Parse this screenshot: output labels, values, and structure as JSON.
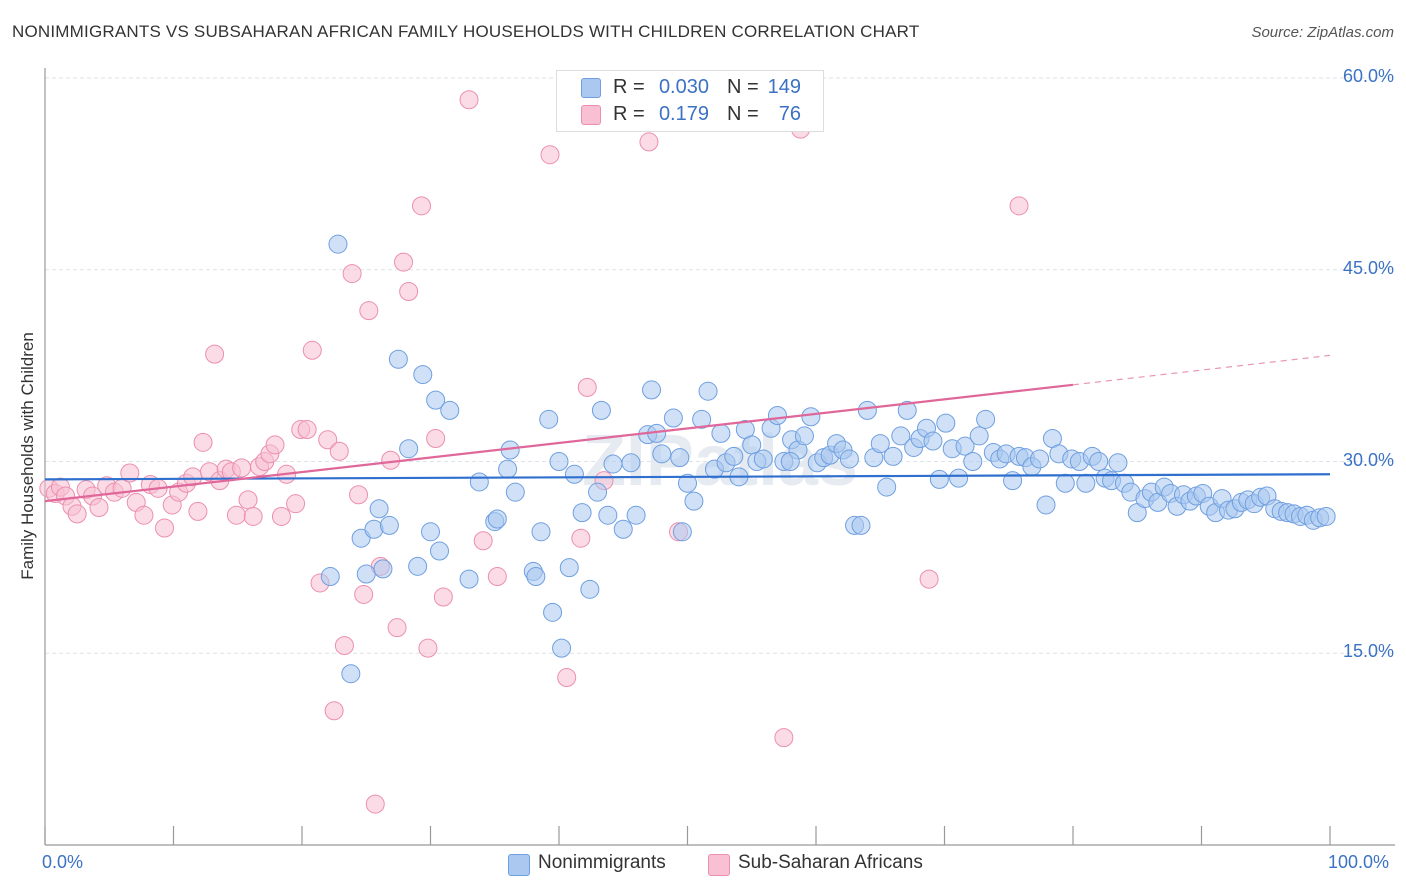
{
  "title": "NONIMMIGRANTS VS SUBSAHARAN AFRICAN FAMILY HOUSEHOLDS WITH CHILDREN CORRELATION CHART",
  "source": "Source: ZipAtlas.com",
  "watermark": "ZIPatlas",
  "colors": {
    "blue_fill": "#aac8f0",
    "blue_stroke": "#6f9fe0",
    "blue_line": "#2f6fce",
    "pink_fill": "#f8c0d2",
    "pink_stroke": "#ec8fae",
    "pink_line": "#e0679a",
    "tick_text": "#3b72c4",
    "grid": "#dde3ea"
  },
  "stats": [
    {
      "r_label": "R =",
      "r_value": "0.030",
      "n_label": "N =",
      "n_value": "149",
      "color": "blue"
    },
    {
      "r_label": "R =",
      "r_value": "0.179",
      "n_label": "N =",
      "n_value": "76",
      "color": "pink"
    }
  ],
  "legend": [
    {
      "label": "Nonimmigrants",
      "color": "blue"
    },
    {
      "label": "Sub-Saharan Africans",
      "color": "pink"
    }
  ],
  "chart_data": {
    "type": "scatter",
    "title": "NONIMMIGRANTS VS SUBSAHARAN AFRICAN FAMILY HOUSEHOLDS WITH CHILDREN CORRELATION CHART",
    "xlabel": "",
    "ylabel": "Family Households with Children",
    "xlim": [
      0,
      100
    ],
    "ylim": [
      0,
      60
    ],
    "x_tick_labels": [
      "0.0%",
      "100.0%"
    ],
    "y_ticks": [
      15,
      30,
      45,
      60
    ],
    "y_tick_labels": [
      "15.0%",
      "30.0%",
      "45.0%",
      "60.0%"
    ],
    "grid": true,
    "legend_position": "bottom",
    "series": [
      {
        "name": "Nonimmigrants",
        "color": "#aac8f0",
        "trend": {
          "x": [
            0,
            100
          ],
          "y": [
            28.6,
            29.0
          ]
        },
        "points": [
          [
            22.8,
            47.0
          ],
          [
            27.5,
            38.0
          ],
          [
            29.4,
            36.8
          ],
          [
            30.4,
            34.8
          ],
          [
            31.5,
            34.0
          ],
          [
            28.3,
            31.0
          ],
          [
            22.2,
            21.0
          ],
          [
            23.8,
            13.4
          ],
          [
            24.6,
            24.0
          ],
          [
            25.0,
            21.2
          ],
          [
            25.6,
            24.7
          ],
          [
            26.0,
            26.3
          ],
          [
            26.3,
            21.6
          ],
          [
            26.8,
            25.0
          ],
          [
            29.0,
            21.8
          ],
          [
            30.7,
            23.0
          ],
          [
            33.0,
            20.8
          ],
          [
            33.8,
            28.4
          ],
          [
            35.0,
            25.3
          ],
          [
            35.2,
            25.5
          ],
          [
            36.0,
            29.4
          ],
          [
            36.2,
            30.9
          ],
          [
            36.6,
            27.6
          ],
          [
            38.0,
            21.4
          ],
          [
            38.2,
            21.0
          ],
          [
            38.6,
            24.5
          ],
          [
            39.2,
            33.3
          ],
          [
            39.5,
            18.2
          ],
          [
            40.0,
            30.0
          ],
          [
            40.2,
            15.4
          ],
          [
            40.8,
            21.7
          ],
          [
            41.2,
            29.0
          ],
          [
            41.8,
            26.0
          ],
          [
            42.4,
            20.0
          ],
          [
            43.0,
            27.6
          ],
          [
            43.3,
            34.0
          ],
          [
            43.8,
            25.8
          ],
          [
            44.2,
            29.8
          ],
          [
            45.0,
            24.7
          ],
          [
            45.6,
            29.9
          ],
          [
            46.0,
            25.8
          ],
          [
            46.9,
            32.1
          ],
          [
            47.2,
            35.6
          ],
          [
            47.6,
            32.2
          ],
          [
            48.0,
            30.6
          ],
          [
            48.9,
            33.4
          ],
          [
            49.4,
            30.3
          ],
          [
            49.6,
            24.5
          ],
          [
            50.0,
            28.3
          ],
          [
            50.5,
            26.9
          ],
          [
            51.1,
            33.3
          ],
          [
            51.6,
            35.5
          ],
          [
            52.1,
            29.4
          ],
          [
            52.6,
            32.2
          ],
          [
            53.0,
            29.9
          ],
          [
            53.6,
            30.4
          ],
          [
            54.0,
            28.8
          ],
          [
            54.5,
            32.5
          ],
          [
            55.0,
            31.3
          ],
          [
            55.4,
            30.0
          ],
          [
            55.9,
            30.2
          ],
          [
            56.5,
            32.6
          ],
          [
            57.0,
            33.6
          ],
          [
            57.5,
            30.0
          ],
          [
            58.1,
            31.7
          ],
          [
            58.6,
            30.9
          ],
          [
            59.1,
            32.0
          ],
          [
            59.6,
            33.5
          ],
          [
            60.1,
            29.9
          ],
          [
            60.6,
            30.3
          ],
          [
            61.1,
            30.5
          ],
          [
            61.6,
            31.4
          ],
          [
            62.1,
            30.9
          ],
          [
            62.6,
            30.2
          ],
          [
            63.0,
            25.0
          ],
          [
            63.5,
            25.0
          ],
          [
            64.0,
            34.0
          ],
          [
            64.5,
            30.3
          ],
          [
            65.0,
            31.4
          ],
          [
            65.5,
            28.0
          ],
          [
            66.0,
            30.4
          ],
          [
            66.6,
            32.0
          ],
          [
            67.1,
            34.0
          ],
          [
            67.6,
            31.1
          ],
          [
            68.1,
            31.8
          ],
          [
            68.6,
            32.6
          ],
          [
            69.1,
            31.6
          ],
          [
            69.6,
            28.6
          ],
          [
            70.1,
            33.0
          ],
          [
            70.6,
            31.0
          ],
          [
            71.1,
            28.7
          ],
          [
            71.6,
            31.2
          ],
          [
            72.2,
            30.0
          ],
          [
            72.7,
            32.0
          ],
          [
            73.2,
            33.3
          ],
          [
            73.8,
            30.7
          ],
          [
            74.3,
            30.2
          ],
          [
            74.8,
            30.6
          ],
          [
            75.3,
            28.5
          ],
          [
            75.8,
            30.4
          ],
          [
            76.3,
            30.3
          ],
          [
            76.8,
            29.6
          ],
          [
            77.4,
            30.2
          ],
          [
            77.9,
            26.6
          ],
          [
            78.4,
            31.8
          ],
          [
            78.9,
            30.6
          ],
          [
            79.4,
            28.3
          ],
          [
            79.9,
            30.2
          ],
          [
            80.5,
            30.0
          ],
          [
            81.0,
            28.3
          ],
          [
            81.5,
            30.4
          ],
          [
            82.0,
            30.0
          ],
          [
            82.5,
            28.7
          ],
          [
            83.0,
            28.5
          ],
          [
            83.5,
            29.9
          ],
          [
            84.0,
            28.3
          ],
          [
            84.5,
            27.6
          ],
          [
            85.0,
            26.0
          ],
          [
            85.6,
            27.1
          ],
          [
            86.1,
            27.6
          ],
          [
            86.6,
            26.8
          ],
          [
            87.1,
            28.0
          ],
          [
            87.6,
            27.5
          ],
          [
            88.1,
            26.5
          ],
          [
            88.6,
            27.4
          ],
          [
            89.1,
            26.9
          ],
          [
            89.6,
            27.3
          ],
          [
            90.1,
            27.5
          ],
          [
            90.6,
            26.5
          ],
          [
            91.1,
            26.0
          ],
          [
            91.6,
            27.1
          ],
          [
            92.1,
            26.2
          ],
          [
            92.6,
            26.3
          ],
          [
            93.1,
            26.8
          ],
          [
            93.6,
            27.0
          ],
          [
            94.1,
            26.7
          ],
          [
            94.6,
            27.2
          ],
          [
            95.1,
            27.3
          ],
          [
            95.7,
            26.3
          ],
          [
            96.2,
            26.1
          ],
          [
            96.7,
            26.0
          ],
          [
            97.2,
            25.9
          ],
          [
            97.7,
            25.7
          ],
          [
            98.2,
            25.8
          ],
          [
            98.7,
            25.4
          ],
          [
            99.2,
            25.6
          ],
          [
            99.7,
            25.7
          ],
          [
            30.0,
            24.5
          ],
          [
            58.0,
            30.0
          ]
        ]
      },
      {
        "name": "Sub-Saharan Africans",
        "color": "#f8c0d2",
        "trend": {
          "x": [
            0,
            80
          ],
          "y": [
            26.9,
            36.0
          ]
        },
        "trend_dashed": {
          "x": [
            80,
            100
          ],
          "y": [
            36.0,
            38.3
          ]
        },
        "points": [
          [
            0.3,
            27.9
          ],
          [
            0.8,
            27.5
          ],
          [
            1.2,
            28.0
          ],
          [
            1.6,
            27.3
          ],
          [
            2.1,
            26.5
          ],
          [
            2.5,
            25.9
          ],
          [
            3.2,
            27.8
          ],
          [
            3.7,
            27.3
          ],
          [
            4.2,
            26.4
          ],
          [
            4.8,
            28.1
          ],
          [
            5.4,
            27.6
          ],
          [
            6.0,
            27.9
          ],
          [
            6.6,
            29.1
          ],
          [
            7.1,
            26.8
          ],
          [
            7.7,
            25.8
          ],
          [
            8.2,
            28.2
          ],
          [
            8.8,
            27.9
          ],
          [
            9.3,
            24.8
          ],
          [
            9.9,
            26.6
          ],
          [
            10.4,
            27.6
          ],
          [
            11.0,
            28.3
          ],
          [
            11.5,
            28.8
          ],
          [
            11.9,
            26.1
          ],
          [
            12.3,
            31.5
          ],
          [
            12.8,
            29.2
          ],
          [
            13.2,
            38.4
          ],
          [
            13.6,
            28.5
          ],
          [
            14.1,
            29.4
          ],
          [
            14.5,
            29.2
          ],
          [
            14.9,
            25.8
          ],
          [
            15.3,
            29.5
          ],
          [
            15.8,
            27.0
          ],
          [
            16.2,
            25.7
          ],
          [
            16.7,
            29.6
          ],
          [
            17.1,
            30.0
          ],
          [
            17.5,
            30.6
          ],
          [
            17.9,
            31.3
          ],
          [
            18.4,
            25.7
          ],
          [
            18.8,
            29.0
          ],
          [
            19.5,
            26.7
          ],
          [
            19.9,
            32.5
          ],
          [
            20.4,
            32.5
          ],
          [
            20.8,
            38.7
          ],
          [
            21.4,
            20.5
          ],
          [
            22.0,
            31.7
          ],
          [
            22.5,
            10.5
          ],
          [
            22.9,
            30.8
          ],
          [
            23.3,
            15.6
          ],
          [
            23.9,
            44.7
          ],
          [
            24.4,
            27.4
          ],
          [
            24.8,
            19.6
          ],
          [
            25.2,
            41.8
          ],
          [
            25.7,
            3.2
          ],
          [
            26.1,
            21.8
          ],
          [
            26.9,
            30.1
          ],
          [
            27.4,
            17.0
          ],
          [
            27.9,
            45.6
          ],
          [
            28.3,
            43.3
          ],
          [
            29.3,
            50.0
          ],
          [
            29.8,
            15.4
          ],
          [
            30.4,
            31.8
          ],
          [
            31.0,
            19.4
          ],
          [
            33.0,
            58.3
          ],
          [
            34.1,
            23.8
          ],
          [
            35.2,
            21.0
          ],
          [
            39.3,
            54.0
          ],
          [
            40.6,
            13.1
          ],
          [
            41.7,
            24.0
          ],
          [
            42.2,
            35.8
          ],
          [
            43.5,
            28.5
          ],
          [
            47.0,
            55.0
          ],
          [
            49.3,
            24.5
          ],
          [
            57.5,
            8.4
          ],
          [
            58.8,
            56.0
          ],
          [
            68.8,
            20.8
          ],
          [
            75.8,
            50.0
          ]
        ]
      }
    ]
  }
}
